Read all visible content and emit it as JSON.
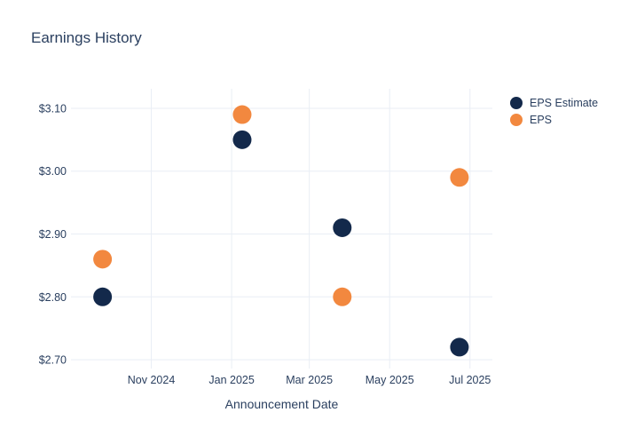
{
  "chart_data": {
    "type": "scatter",
    "title": "Earnings History",
    "xlabel": "Announcement Date",
    "ylabel": "",
    "legend_position": "right",
    "grid": true,
    "series": [
      {
        "key": "eps_estimate",
        "name": "EPS Estimate",
        "color": "#13294b"
      },
      {
        "key": "eps",
        "name": "EPS",
        "color": "#f2883f"
      }
    ],
    "points": [
      {
        "date": "2024-09-25",
        "eps_estimate": 2.8,
        "eps": 2.86
      },
      {
        "date": "2025-01-09",
        "eps_estimate": 3.05,
        "eps": 3.09
      },
      {
        "date": "2025-03-26",
        "eps_estimate": 2.91,
        "eps": 2.8
      },
      {
        "date": "2025-06-23",
        "eps_estimate": 2.72,
        "eps": 2.99
      }
    ],
    "x_ticks": [
      {
        "date": "2024-11-01",
        "label": "Nov 2024"
      },
      {
        "date": "2025-01-01",
        "label": "Jan 2025"
      },
      {
        "date": "2025-03-01",
        "label": "Mar 2025"
      },
      {
        "date": "2025-05-01",
        "label": "May 2025"
      },
      {
        "date": "2025-07-01",
        "label": "Jul 2025"
      }
    ],
    "y_ticks": [
      {
        "value": 2.7,
        "label": "$2.70"
      },
      {
        "value": 2.8,
        "label": "$2.80"
      },
      {
        "value": 2.9,
        "label": "$2.90"
      },
      {
        "value": 3.0,
        "label": "$3.00"
      },
      {
        "value": 3.1,
        "label": "$3.10"
      }
    ],
    "x_range": [
      "2024-09-01",
      "2025-07-18"
    ],
    "y_range": [
      2.686,
      3.131
    ],
    "colors": {
      "text": "#2a3f5f",
      "grid": "#e9eef5",
      "background": "#ffffff"
    }
  }
}
